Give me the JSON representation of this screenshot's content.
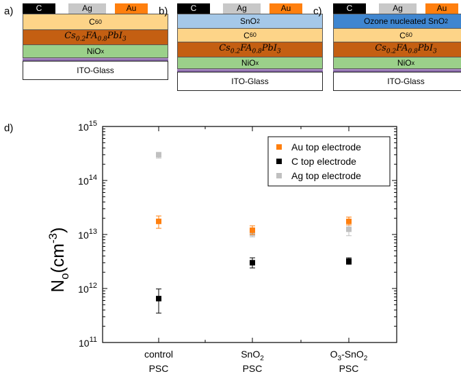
{
  "panels": {
    "a": {
      "label": "a)",
      "electrodes": [
        {
          "label": "C",
          "color": "#000000",
          "text_color": "#ffffff"
        },
        {
          "label": "Ag",
          "color": "#c8c8c8",
          "text_color": "#000000"
        },
        {
          "label": "Au",
          "color": "#ff7f0e",
          "text_color": "#000000"
        }
      ],
      "layers": [
        {
          "label": "C60",
          "color": "#fdd488"
        },
        {
          "label": "Cs0.2FA0.8PbI3",
          "color": "#c45f12"
        },
        {
          "label": "NiOx",
          "color": "#9bd08a"
        }
      ],
      "substrate": "ITO-Glass"
    },
    "b": {
      "label": "b)",
      "electrodes": [
        {
          "label": "C",
          "color": "#000000",
          "text_color": "#ffffff"
        },
        {
          "label": "Ag",
          "color": "#c8c8c8",
          "text_color": "#000000"
        },
        {
          "label": "Au",
          "color": "#ff7f0e",
          "text_color": "#000000"
        }
      ],
      "layers": [
        {
          "label": "SnO2",
          "color": "#a5c8e8"
        },
        {
          "label": "C60",
          "color": "#fdd488"
        },
        {
          "label": "Cs0.2FA0.8PbI3",
          "color": "#c45f12"
        },
        {
          "label": "NiOx",
          "color": "#9bd08a"
        }
      ],
      "substrate": "ITO-Glass"
    },
    "c": {
      "label": "c)",
      "electrodes": [
        {
          "label": "C",
          "color": "#000000",
          "text_color": "#ffffff"
        },
        {
          "label": "Ag",
          "color": "#c8c8c8",
          "text_color": "#000000"
        },
        {
          "label": "Au",
          "color": "#ff7f0e",
          "text_color": "#000000"
        }
      ],
      "layers": [
        {
          "label": "Ozone nucleated SnO2",
          "color": "#3f86d0"
        },
        {
          "label": "C60",
          "color": "#fdd488"
        },
        {
          "label": "Cs0.2FA0.8PbI3",
          "color": "#c45f12"
        },
        {
          "label": "NiOx",
          "color": "#9bd08a"
        }
      ],
      "substrate": "ITO-Glass"
    }
  },
  "chart_data": {
    "type": "scatter",
    "panel_label": "d)",
    "ylabel": "No(cm-3)",
    "yscale": "log",
    "ylim": [
      100000000000.0,
      1000000000000000.0
    ],
    "yticks": [
      {
        "value": 100000000000.0,
        "label": "10^11"
      },
      {
        "value": 1000000000000.0,
        "label": "10^12"
      },
      {
        "value": 10000000000000.0,
        "label": "10^13"
      },
      {
        "value": 100000000000000.0,
        "label": "10^14"
      },
      {
        "value": 1000000000000000.0,
        "label": "10^15"
      }
    ],
    "categories": [
      {
        "line1": "control",
        "line2": "PSC"
      },
      {
        "line1": "SnO2",
        "line2": "PSC"
      },
      {
        "line1": "O3-SnO2",
        "line2": "PSC"
      }
    ],
    "legend_position": "top-right",
    "series": [
      {
        "name": "Au top electrode",
        "color": "#ff7f0e",
        "values": [
          17500000000000.0,
          12000000000000.0,
          17500000000000.0
        ],
        "err_low": [
          13000000000000.0,
          10000000000000.0,
          15000000000000.0
        ],
        "err_high": [
          22000000000000.0,
          14500000000000.0,
          21000000000000.0
        ]
      },
      {
        "name": "C top electrode",
        "color": "#000000",
        "values": [
          650000000000.0,
          3000000000000.0,
          3200000000000.0
        ],
        "err_low": [
          350000000000.0,
          2400000000000.0,
          2800000000000.0
        ],
        "err_high": [
          980000000000.0,
          3700000000000.0,
          3700000000000.0
        ]
      },
      {
        "name": "Ag top electrode",
        "color": "#c0c0c0",
        "values": [
          300000000000000.0,
          10500000000000.0,
          12500000000000.0
        ],
        "err_low": [
          260000000000000.0,
          9000000000000.0,
          9500000000000.0
        ],
        "err_high": [
          330000000000000.0,
          12000000000000.0,
          15000000000000.0
        ]
      }
    ]
  }
}
